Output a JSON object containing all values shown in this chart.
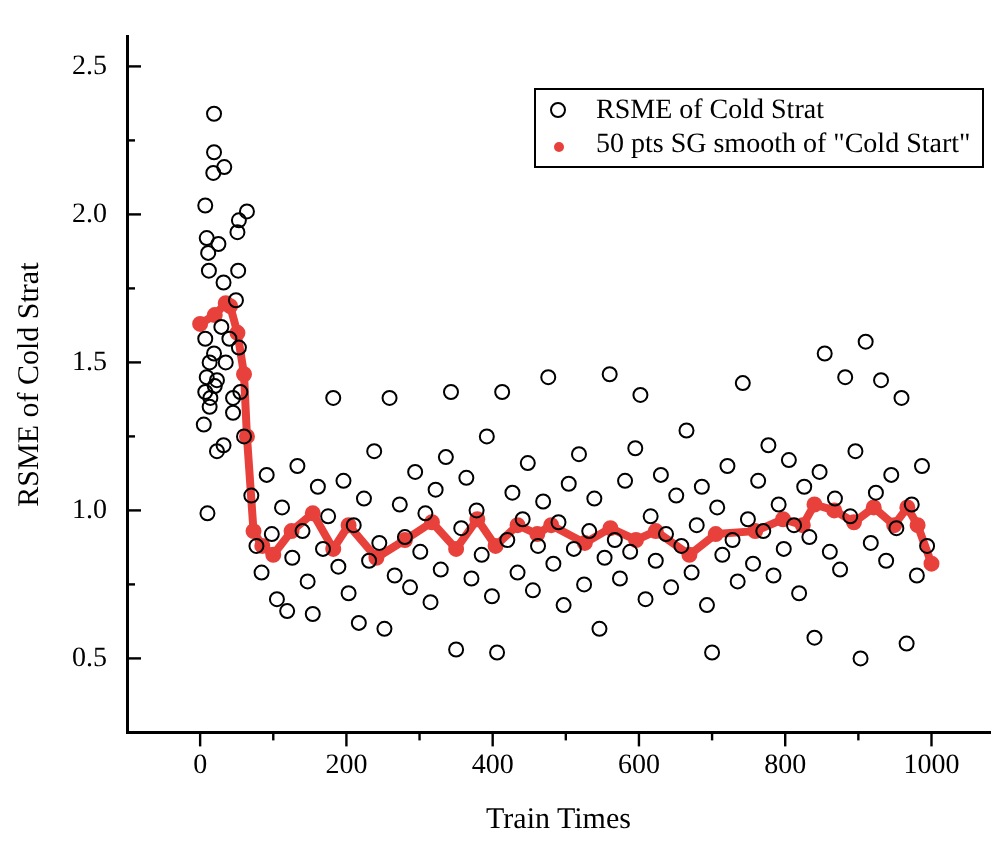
{
  "chart_data": {
    "type": "scatter",
    "xlabel": "Train Times",
    "ylabel": "RSME of Cold Strat",
    "xlim": [
      -100,
      1080
    ],
    "ylim": [
      0.25,
      2.6
    ],
    "xticks": [
      0,
      {
        "value": 100,
        "label": null
      },
      200,
      {
        "value": 300,
        "label": null
      },
      400,
      {
        "value": 500,
        "label": null
      },
      600,
      {
        "value": 700,
        "label": null
      },
      800,
      {
        "value": 900,
        "label": null
      },
      1000
    ],
    "yticks": [
      {
        "value": 0.5,
        "label": "0.5"
      },
      {
        "value": 0.75,
        "label": null
      },
      {
        "value": 1,
        "label": "1.0"
      },
      {
        "value": 1.25,
        "label": null
      },
      {
        "value": 1.5,
        "label": "1.5"
      },
      {
        "value": 1.75,
        "label": null
      },
      {
        "value": 2,
        "label": "2.0"
      },
      {
        "value": 2.25,
        "label": null
      },
      {
        "value": 2.5,
        "label": "2.5"
      }
    ],
    "grid": false,
    "legend": "top right",
    "series": [
      {
        "name": "RSME of Cold Strat",
        "type": "scatter",
        "marker": "circle",
        "color": "#000000",
        "x": [
          5,
          7,
          7,
          7,
          9,
          9,
          10,
          11,
          12,
          13,
          13,
          14,
          18,
          19,
          19,
          19,
          20,
          23,
          23,
          25,
          29,
          32,
          32,
          33,
          35,
          40,
          45,
          45,
          49,
          51,
          52,
          53,
          53,
          55,
          60,
          64,
          70,
          77,
          84,
          91,
          98,
          105,
          112,
          119,
          126,
          133,
          140,
          147,
          154,
          161,
          168,
          175,
          182,
          189,
          196,
          203,
          210,
          217,
          224,
          231,
          238,
          245,
          252,
          259,
          266,
          273,
          280,
          287,
          294,
          301,
          308,
          315,
          322,
          329,
          336,
          343,
          350,
          357,
          364,
          371,
          378,
          385,
          392,
          399,
          406,
          413,
          420,
          427,
          434,
          441,
          448,
          455,
          462,
          469,
          476,
          483,
          490,
          497,
          504,
          511,
          518,
          525,
          532,
          539,
          546,
          553,
          560,
          567,
          574,
          581,
          588,
          595,
          602,
          609,
          616,
          623,
          630,
          637,
          644,
          651,
          658,
          665,
          672,
          679,
          686,
          693,
          700,
          707,
          714,
          721,
          728,
          735,
          742,
          749,
          756,
          763,
          770,
          777,
          784,
          791,
          798,
          805,
          812,
          819,
          826,
          833,
          840,
          847,
          854,
          861,
          868,
          875,
          882,
          889,
          896,
          903,
          910,
          917,
          924,
          931,
          938,
          945,
          952,
          959,
          966,
          973,
          980,
          987,
          994
        ],
        "values": [
          1.29,
          2.03,
          1.58,
          1.4,
          1.92,
          1.45,
          0.99,
          1.87,
          1.81,
          1.5,
          1.35,
          1.38,
          2.14,
          2.34,
          2.21,
          1.53,
          1.42,
          1.44,
          1.2,
          1.9,
          1.62,
          1.77,
          1.22,
          2.16,
          1.5,
          1.58,
          1.33,
          1.38,
          1.71,
          1.94,
          1.81,
          1.98,
          1.55,
          1.4,
          1.25,
          2.01,
          1.05,
          0.88,
          0.79,
          1.12,
          0.92,
          0.7,
          1.01,
          0.66,
          0.84,
          1.15,
          0.93,
          0.76,
          0.65,
          1.08,
          0.87,
          0.98,
          1.38,
          0.81,
          1.1,
          0.72,
          0.95,
          0.62,
          1.04,
          0.83,
          1.2,
          0.89,
          0.6,
          1.38,
          0.78,
          1.02,
          0.91,
          0.74,
          1.13,
          0.86,
          0.99,
          0.69,
          1.07,
          0.8,
          1.18,
          1.4,
          0.53,
          0.94,
          1.11,
          0.77,
          1.0,
          0.85,
          1.25,
          0.71,
          0.52,
          1.4,
          0.9,
          1.06,
          0.79,
          0.97,
          1.16,
          0.73,
          0.88,
          1.03,
          1.45,
          0.82,
          0.96,
          0.68,
          1.09,
          0.87,
          1.19,
          0.75,
          0.93,
          1.04,
          0.6,
          0.84,
          1.46,
          0.9,
          0.77,
          1.1,
          0.86,
          1.21,
          1.39,
          0.7,
          0.98,
          0.83,
          1.12,
          0.92,
          0.74,
          1.05,
          0.88,
          1.27,
          0.79,
          0.95,
          1.08,
          0.68,
          0.52,
          1.01,
          0.85,
          1.15,
          0.9,
          0.76,
          1.43,
          0.97,
          0.82,
          1.1,
          0.93,
          1.22,
          0.78,
          1.02,
          0.87,
          1.17,
          0.95,
          0.72,
          1.08,
          0.91,
          0.57,
          1.13,
          1.53,
          0.86,
          1.04,
          0.8,
          1.45,
          0.98,
          1.2,
          0.5,
          1.57,
          0.89,
          1.06,
          1.44,
          0.83,
          1.12,
          0.94,
          1.38,
          0.55,
          1.02,
          0.78,
          1.15,
          0.88
        ]
      },
      {
        "name": "50 pts SG smooth of \"Cold Start\"",
        "type": "line",
        "marker": "circle",
        "line_style": "solid",
        "color": "#e8413c",
        "x": [
          0,
          20,
          35,
          41,
          51,
          60,
          64,
          73,
          85,
          100,
          125,
          154,
          182,
          203,
          241,
          280,
          317,
          350,
          379,
          404,
          434,
          461,
          480,
          526,
          561,
          596,
          623,
          669,
          705,
          759,
          797,
          824,
          840,
          867,
          894,
          921,
          949,
          967,
          981,
          1000
        ],
        "values": [
          1.63,
          1.66,
          1.7,
          1.69,
          1.6,
          1.46,
          1.25,
          0.93,
          0.88,
          0.85,
          0.93,
          0.99,
          0.87,
          0.95,
          0.84,
          0.9,
          0.96,
          0.87,
          0.97,
          0.88,
          0.95,
          0.92,
          0.95,
          0.89,
          0.94,
          0.9,
          0.93,
          0.85,
          0.92,
          0.93,
          0.97,
          0.95,
          1.02,
          1.0,
          0.96,
          1.01,
          0.95,
          1.01,
          0.95,
          0.82
        ]
      }
    ]
  }
}
